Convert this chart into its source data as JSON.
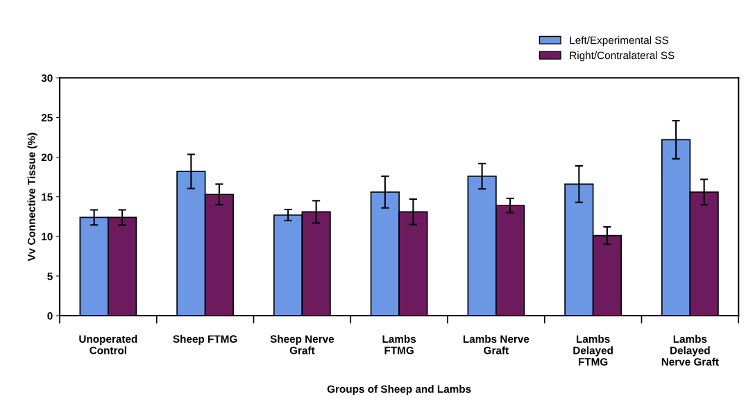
{
  "chart_data": {
    "type": "bar",
    "categories": [
      "Unoperated\nControl",
      "Sheep FTMG",
      "Sheep Nerve\nGraft",
      "Lambs\nFTMG",
      "Lambs Nerve\nGraft",
      "Lambs\nDelayed\nFTMG",
      "Lambs\nDelayed\nNerve Graft"
    ],
    "series": [
      {
        "name": "Left/Experimental SS",
        "color": "#6b97e4",
        "values": [
          12.4,
          18.2,
          12.7,
          15.6,
          17.6,
          16.6,
          22.2
        ],
        "errors": [
          0.95,
          2.15,
          0.7,
          2.0,
          1.6,
          2.3,
          2.4
        ]
      },
      {
        "name": "Right/Contralateral SS",
        "color": "#6e1a5e",
        "values": [
          12.4,
          15.3,
          13.1,
          13.1,
          13.9,
          10.1,
          15.6
        ],
        "errors": [
          0.95,
          1.3,
          1.4,
          1.6,
          0.9,
          1.1,
          1.6
        ]
      }
    ],
    "xlabel": "Groups of Sheep and Lambs",
    "ylabel": "Vv Connective Tissue (%)",
    "ylim": [
      0,
      30
    ],
    "yticks": [
      0,
      5,
      10,
      15,
      20,
      25,
      30
    ],
    "grid": false,
    "legend": "top right"
  }
}
